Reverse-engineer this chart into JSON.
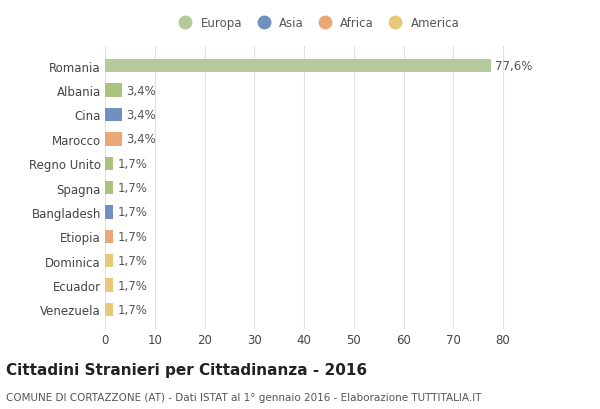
{
  "categories": [
    "Venezuela",
    "Ecuador",
    "Dominica",
    "Etiopia",
    "Bangladesh",
    "Spagna",
    "Regno Unito",
    "Marocco",
    "Cina",
    "Albania",
    "Romania"
  ],
  "values": [
    1.7,
    1.7,
    1.7,
    1.7,
    1.7,
    1.7,
    1.7,
    3.4,
    3.4,
    3.4,
    77.6
  ],
  "labels": [
    "1,7%",
    "1,7%",
    "1,7%",
    "1,7%",
    "1,7%",
    "1,7%",
    "1,7%",
    "3,4%",
    "3,4%",
    "3,4%",
    "77,6%"
  ],
  "colors": [
    "#e8c97a",
    "#e8c97a",
    "#e8c97a",
    "#e8a878",
    "#7090c0",
    "#a8c47e",
    "#a8c47e",
    "#e8a878",
    "#7090c0",
    "#a8c47e",
    "#b5c99a"
  ],
  "legend_labels": [
    "Europa",
    "Asia",
    "Africa",
    "America"
  ],
  "legend_colors": [
    "#b5c99a",
    "#7090c0",
    "#e8a878",
    "#e8c97a"
  ],
  "title": "Cittadini Stranieri per Cittadinanza - 2016",
  "subtitle": "COMUNE DI CORTAZZONE (AT) - Dati ISTAT al 1° gennaio 2016 - Elaborazione TUTTITALIA.IT",
  "xlim": [
    0,
    85
  ],
  "xticks": [
    0,
    10,
    20,
    30,
    40,
    50,
    60,
    70,
    80
  ],
  "background_color": "#ffffff",
  "plot_background": "#ffffff",
  "grid_color": "#e0e0e0",
  "bar_height": 0.55,
  "title_fontsize": 11,
  "subtitle_fontsize": 7.5,
  "tick_fontsize": 8.5,
  "label_fontsize": 8.5,
  "legend_fontsize": 8.5
}
